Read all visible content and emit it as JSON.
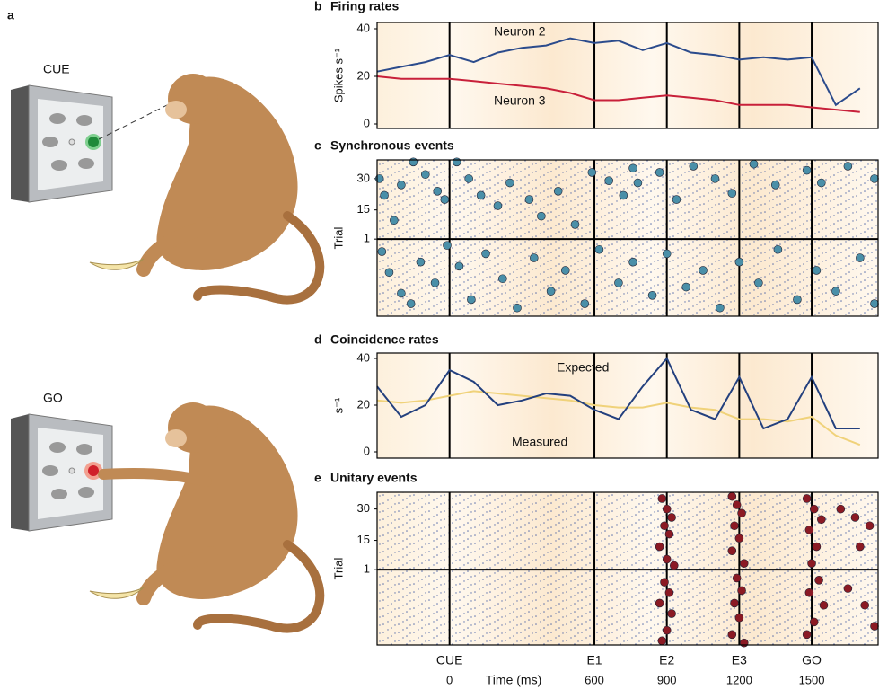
{
  "figure": {
    "panel_a": {
      "label": "a",
      "cue_label": "CUE",
      "go_label": "GO"
    }
  },
  "chart_data": [
    {
      "type": "line",
      "panel": "b",
      "title": "Firing rates",
      "ylabel": "Spikes s⁻¹",
      "xlim": [
        -300,
        1775
      ],
      "ylim": [
        0,
        40
      ],
      "yticks": [
        0,
        20,
        40
      ],
      "x": [
        -300,
        -200,
        -100,
        0,
        100,
        200,
        300,
        400,
        500,
        600,
        700,
        800,
        900,
        1000,
        1100,
        1200,
        1300,
        1400,
        1500,
        1600,
        1700
      ],
      "series": [
        {
          "name": "Neuron 2",
          "color": "#2b4b8c",
          "values": [
            22,
            24,
            26,
            29,
            26,
            30,
            32,
            33,
            36,
            34,
            35,
            31,
            34,
            30,
            29,
            27,
            28,
            27,
            28,
            8,
            15
          ]
        },
        {
          "name": "Neuron 3",
          "color": "#c8203a",
          "values": [
            20,
            19,
            19,
            19,
            18,
            17,
            16,
            15,
            13,
            10,
            10,
            11,
            12,
            11,
            10,
            8,
            8,
            8,
            7,
            6,
            5
          ]
        }
      ]
    },
    {
      "type": "raster",
      "panel": "c",
      "title": "Synchronous events",
      "ylabel": "Trial",
      "xlim": [
        -300,
        1775
      ],
      "ylim": [
        -36,
        39
      ],
      "yticks": [
        1,
        15,
        30
      ],
      "color": "#4a8fa8",
      "x": [
        -290,
        -270,
        -230,
        -200,
        -150,
        -100,
        -50,
        -20,
        30,
        80,
        130,
        200,
        250,
        330,
        380,
        450,
        520,
        590,
        660,
        720,
        760,
        780,
        870,
        940,
        1010,
        1100,
        1170,
        1260,
        1350,
        1480,
        1540,
        1650,
        1760,
        -280,
        -250,
        -200,
        -160,
        -120,
        -60,
        -10,
        40,
        90,
        150,
        220,
        280,
        350,
        420,
        480,
        560,
        620,
        700,
        760,
        840,
        900,
        980,
        1050,
        1120,
        1200,
        1280,
        1360,
        1440,
        1520,
        1600,
        1700,
        1760
      ],
      "values": [
        30,
        22,
        10,
        27,
        38,
        32,
        24,
        20,
        38,
        30,
        22,
        17,
        28,
        20,
        12,
        24,
        8,
        33,
        29,
        22,
        35,
        28,
        33,
        20,
        36,
        30,
        23,
        37,
        27,
        34,
        28,
        36,
        30,
        -5,
        -15,
        -25,
        -30,
        -10,
        -20,
        -2,
        -12,
        -28,
        -6,
        -18,
        -32,
        -8,
        -24,
        -14,
        -30,
        -4,
        -20,
        -10,
        -26,
        -6,
        -22,
        -14,
        -32,
        -10,
        -20,
        -4,
        -28,
        -14,
        -24,
        -8,
        -30
      ]
    },
    {
      "type": "line",
      "panel": "d",
      "title": "Coincidence rates",
      "ylabel": "s⁻¹",
      "xlim": [
        -300,
        1775
      ],
      "ylim": [
        0,
        40
      ],
      "yticks": [
        0,
        20,
        40
      ],
      "x": [
        -300,
        -200,
        -100,
        0,
        100,
        200,
        300,
        400,
        500,
        600,
        700,
        800,
        900,
        1000,
        1100,
        1200,
        1300,
        1400,
        1500,
        1600,
        1700
      ],
      "series": [
        {
          "name": "Expected",
          "color": "#f0d27a",
          "values": [
            22,
            21,
            22,
            24,
            26,
            25,
            24,
            23,
            22,
            20,
            19,
            19,
            21,
            19,
            18,
            14,
            14,
            13,
            15,
            7,
            3
          ]
        },
        {
          "name": "Measured",
          "color": "#23407e",
          "values": [
            28,
            15,
            20,
            35,
            30,
            20,
            22,
            25,
            24,
            18,
            14,
            28,
            40,
            18,
            14,
            32,
            10,
            14,
            32,
            10,
            10
          ]
        }
      ]
    },
    {
      "type": "raster",
      "panel": "e",
      "title": "Unitary events",
      "ylabel": "Trial",
      "xlabel": "Time (ms)",
      "xlim": [
        -300,
        1775
      ],
      "ylim": [
        -35,
        38
      ],
      "yticks": [
        1,
        15,
        30
      ],
      "color": "#8b1a24",
      "xticks": [
        0,
        600,
        900,
        1200,
        1500
      ],
      "event_labels": [
        "CUE",
        "E1",
        "E2",
        "E3",
        "GO"
      ],
      "x": [
        880,
        900,
        920,
        890,
        910,
        870,
        900,
        930,
        890,
        910,
        870,
        920,
        900,
        880,
        1170,
        1190,
        1210,
        1180,
        1200,
        1170,
        1220,
        1190,
        1210,
        1180,
        1200,
        1170,
        1220,
        1480,
        1510,
        1540,
        1490,
        1520,
        1500,
        1530,
        1490,
        1550,
        1510,
        1480,
        1620,
        1680,
        1740,
        1700,
        1650,
        1720,
        1760
      ],
      "values": [
        35,
        30,
        26,
        22,
        18,
        12,
        6,
        3,
        -5,
        -10,
        -15,
        -20,
        -28,
        -33,
        36,
        32,
        28,
        22,
        16,
        10,
        4,
        -3,
        -9,
        -15,
        -22,
        -30,
        -34,
        35,
        30,
        25,
        20,
        12,
        4,
        -4,
        -10,
        -16,
        -24,
        -30,
        30,
        26,
        22,
        12,
        -8,
        -16,
        -26
      ]
    }
  ]
}
